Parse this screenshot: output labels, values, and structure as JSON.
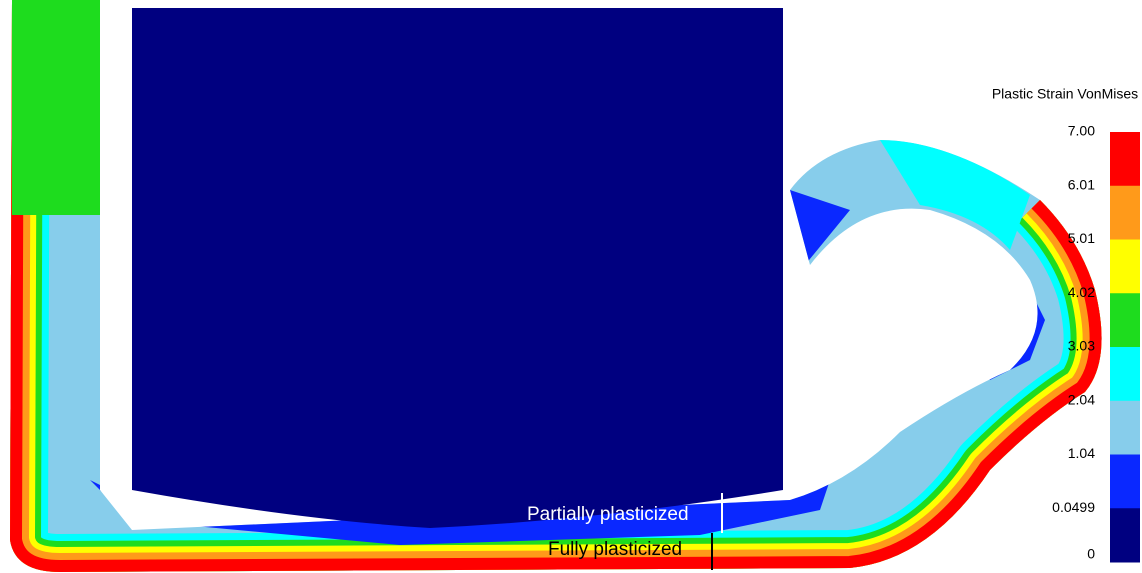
{
  "legend": {
    "title": "Plastic Strain VonMises",
    "ticks": [
      "7.00",
      "6.01",
      "5.01",
      "4.02",
      "3.03",
      "2.04",
      "1.04",
      "0.0499",
      "0"
    ],
    "colors": [
      "#ff0000",
      "#ff9a1a",
      "#ffff00",
      "#1edc1e",
      "#00ffff",
      "#87cdeb",
      "#0a28ff",
      "#000080"
    ]
  },
  "annotations": {
    "partial": "Partially plasticized",
    "full": "Fully plasticized"
  }
}
